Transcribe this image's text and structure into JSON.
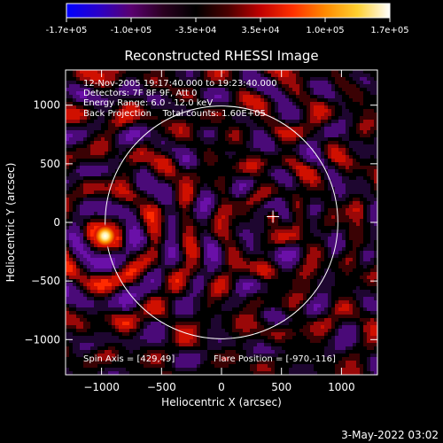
{
  "colorbar": {
    "tick_labels": [
      "-1.7e+05",
      "-1.0e+05",
      "-3.5e+04",
      "3.5e+04",
      "1.0e+05",
      "1.7e+05"
    ],
    "stops": [
      "#0000ff",
      "#2a00c8",
      "#5a0070",
      "#2a0020",
      "#000000",
      "#4a0000",
      "#c00000",
      "#ff3000",
      "#ff8a00",
      "#ffd030",
      "#ffffff"
    ]
  },
  "chart_data": {
    "type": "heatmap",
    "title": "Reconstructed RHESSI Image",
    "xlabel": "Heliocentric X (arcsec)",
    "ylabel": "Heliocentric Y (arcsec)",
    "xlim": [
      -1300,
      1300
    ],
    "ylim": [
      -1300,
      1300
    ],
    "xticks": [
      -1000,
      -500,
      0,
      500,
      1000
    ],
    "yticks": [
      -1000,
      -500,
      0,
      500,
      1000
    ],
    "xtick_labels": [
      "−1000",
      "−500",
      "0",
      "500",
      "1000"
    ],
    "ytick_labels": [
      "−1000",
      "−500",
      "0",
      "500",
      "1000"
    ],
    "color_range": [
      -170000,
      170000
    ],
    "solar_disk_radius_arcsec": 970,
    "source": {
      "x": -970,
      "y": -116
    },
    "cross_marker": {
      "x": 429,
      "y": 49
    },
    "annotations": [
      "12-Nov-2005 19:17:40.000 to 19:23:40.000",
      "Detectors: 7F 8F 9F, Att 0",
      "Energy Range: 6.0 - 12.0 keV",
      "Back Projection    Total counts: 1.60E+05",
      "Spin Axis = [429,49]",
      "Flare Position = [-970,-116]"
    ]
  },
  "footer": {
    "timestamp": "3-May-2022 03:02"
  }
}
